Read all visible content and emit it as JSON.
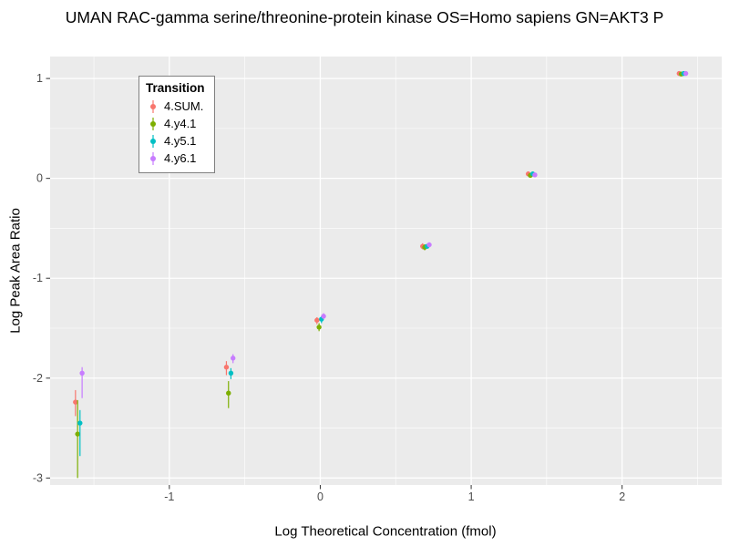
{
  "title": "UMAN RAC-gamma serine/threonine-protein kinase OS=Homo sapiens GN=AKT3 P",
  "chart_data": {
    "type": "scatter",
    "title": "UMAN RAC-gamma serine/threonine-protein kinase OS=Homo sapiens GN=AKT3 P",
    "xlabel": "Log Theoretical Concentration (fmol)",
    "ylabel": "Log Peak Area Ratio",
    "xlim": [
      -1.79,
      2.66
    ],
    "ylim": [
      -3.07,
      1.22
    ],
    "x_ticks": [
      -1,
      0,
      1,
      2
    ],
    "y_ticks": [
      1,
      0,
      -1,
      -2,
      -3
    ],
    "x_minor_ticks": [
      -1.5,
      -0.5,
      0.5,
      1.5,
      2.5
    ],
    "y_minor_ticks": [
      0.5,
      -0.5,
      -1.5,
      -2.5
    ],
    "grid": true,
    "panel_bg": "#EBEBEB",
    "grid_color": "#FFFFFF",
    "tick_label_color": "#4d4d4d",
    "legend_title": "Transition",
    "legend_position": "top-left-inside",
    "series": [
      {
        "name": "4.SUM.",
        "color": "#F8766D",
        "points": [
          {
            "x": -1.622,
            "y": -2.24,
            "ymin": -2.38,
            "ymax": -2.12
          },
          {
            "x": -0.622,
            "y": -1.89,
            "ymin": -1.97,
            "ymax": -1.83
          },
          {
            "x": -0.022,
            "y": -1.42,
            "ymin": -1.46,
            "ymax": -1.39
          },
          {
            "x": 0.678,
            "y": -0.68,
            "ymin": -0.71,
            "ymax": -0.65
          },
          {
            "x": 1.378,
            "y": 0.045,
            "ymin": 0.02,
            "ymax": 0.07
          },
          {
            "x": 2.378,
            "y": 1.05,
            "ymin": 1.04,
            "ymax": 1.06
          }
        ]
      },
      {
        "name": "4.y4.1",
        "color": "#7CAE00",
        "points": [
          {
            "x": -1.608,
            "y": -2.56,
            "ymin": -3.0,
            "ymax": -2.22
          },
          {
            "x": -0.608,
            "y": -2.15,
            "ymin": -2.3,
            "ymax": -2.03
          },
          {
            "x": -0.008,
            "y": -1.49,
            "ymin": -1.53,
            "ymax": -1.45
          },
          {
            "x": 0.692,
            "y": -0.69,
            "ymin": -0.72,
            "ymax": -0.66
          },
          {
            "x": 1.392,
            "y": 0.03,
            "ymin": 0.01,
            "ymax": 0.05
          },
          {
            "x": 2.392,
            "y": 1.045,
            "ymin": 1.035,
            "ymax": 1.055
          }
        ]
      },
      {
        "name": "4.y5.1",
        "color": "#00BFC4",
        "points": [
          {
            "x": -1.592,
            "y": -2.45,
            "ymin": -2.78,
            "ymax": -2.32
          },
          {
            "x": -0.592,
            "y": -1.95,
            "ymin": -2.01,
            "ymax": -1.9
          },
          {
            "x": 0.008,
            "y": -1.41,
            "ymin": -1.45,
            "ymax": -1.38
          },
          {
            "x": 0.708,
            "y": -0.68,
            "ymin": -0.7,
            "ymax": -0.66
          },
          {
            "x": 1.408,
            "y": 0.045,
            "ymin": 0.025,
            "ymax": 0.065
          },
          {
            "x": 2.408,
            "y": 1.05,
            "ymin": 1.04,
            "ymax": 1.06
          }
        ]
      },
      {
        "name": "4.y6.1",
        "color": "#C77CFF",
        "points": [
          {
            "x": -1.578,
            "y": -1.95,
            "ymin": -2.2,
            "ymax": -1.89
          },
          {
            "x": -0.578,
            "y": -1.8,
            "ymin": -1.85,
            "ymax": -1.76
          },
          {
            "x": 0.022,
            "y": -1.38,
            "ymin": -1.41,
            "ymax": -1.35
          },
          {
            "x": 0.722,
            "y": -0.665,
            "ymin": -0.69,
            "ymax": -0.64
          },
          {
            "x": 1.422,
            "y": 0.035,
            "ymin": 0.015,
            "ymax": 0.055
          },
          {
            "x": 2.422,
            "y": 1.05,
            "ymin": 1.04,
            "ymax": 1.06
          }
        ]
      }
    ]
  }
}
